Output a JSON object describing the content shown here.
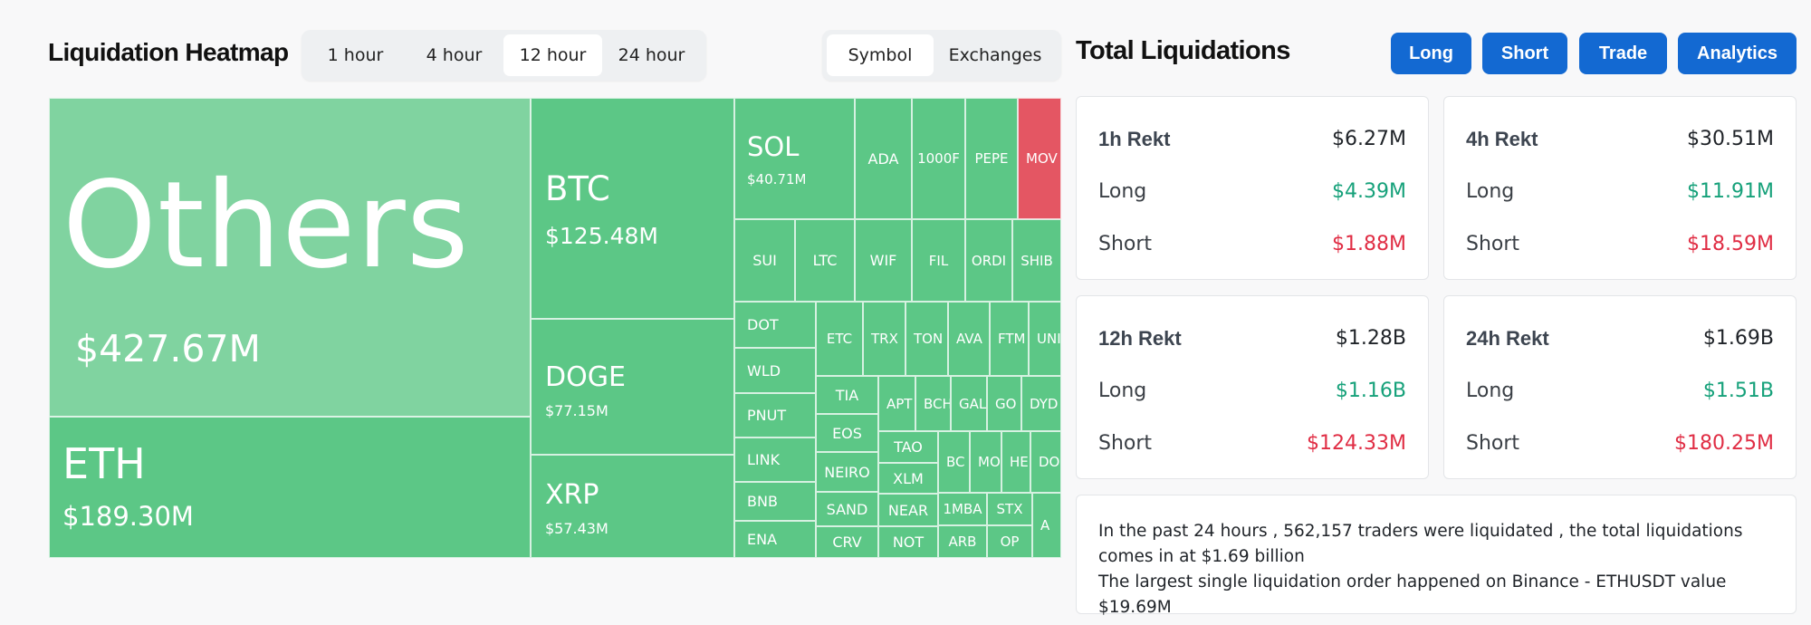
{
  "heatmap": {
    "title": "Liquidation Heatmap",
    "time_tabs": [
      "1 hour",
      "4 hour",
      "12 hour",
      "24 hour"
    ],
    "active_time_tab": "12 hour",
    "view_tabs": [
      "Symbol",
      "Exchanges"
    ],
    "active_view_tab": "Symbol",
    "colors": {
      "long_dominant": "#5cc786",
      "others": "#80d3a0",
      "short_dominant": "#e45663"
    },
    "tiles": [
      {
        "symbol": "Others",
        "value": "$427.67M"
      },
      {
        "symbol": "ETH",
        "value": "$189.30M"
      },
      {
        "symbol": "BTC",
        "value": "$125.48M"
      },
      {
        "symbol": "DOGE",
        "value": "$77.15M"
      },
      {
        "symbol": "XRP",
        "value": "$57.43M"
      },
      {
        "symbol": "SOL",
        "value": "$40.71M"
      },
      {
        "symbol": "ADA"
      },
      {
        "symbol": "1000F"
      },
      {
        "symbol": "PEPE"
      },
      {
        "symbol": "MOV"
      },
      {
        "symbol": "SUI"
      },
      {
        "symbol": "LTC"
      },
      {
        "symbol": "WIF"
      },
      {
        "symbol": "FIL"
      },
      {
        "symbol": "ORDI"
      },
      {
        "symbol": "SHIB"
      },
      {
        "symbol": "DOT"
      },
      {
        "symbol": "WLD"
      },
      {
        "symbol": "PNUT"
      },
      {
        "symbol": "LINK"
      },
      {
        "symbol": "BNB"
      },
      {
        "symbol": "ENA"
      },
      {
        "symbol": "ETC"
      },
      {
        "symbol": "TRX"
      },
      {
        "symbol": "TON"
      },
      {
        "symbol": "AVA"
      },
      {
        "symbol": "FTM"
      },
      {
        "symbol": "UNI"
      },
      {
        "symbol": "TIA"
      },
      {
        "symbol": "APT"
      },
      {
        "symbol": "BCH"
      },
      {
        "symbol": "GAL"
      },
      {
        "symbol": "GO"
      },
      {
        "symbol": "DYD"
      },
      {
        "symbol": "EOS"
      },
      {
        "symbol": "NEIRO"
      },
      {
        "symbol": "SAND"
      },
      {
        "symbol": "CRV"
      },
      {
        "symbol": "TAO"
      },
      {
        "symbol": "XLM"
      },
      {
        "symbol": "NEAR"
      },
      {
        "symbol": "NOT"
      },
      {
        "symbol": "BC"
      },
      {
        "symbol": "MO"
      },
      {
        "symbol": "HE"
      },
      {
        "symbol": "DO"
      },
      {
        "symbol": "1MBA"
      },
      {
        "symbol": "STX"
      },
      {
        "symbol": "ARB"
      },
      {
        "symbol": "OP"
      },
      {
        "symbol": "A"
      }
    ]
  },
  "total": {
    "title": "Total Liquidations",
    "buttons": [
      "Long",
      "Short",
      "Trade",
      "Analytics"
    ],
    "long_label": "Long",
    "short_label": "Short",
    "cards": [
      {
        "label": "1h Rekt",
        "total": "$6.27M",
        "long": "$4.39M",
        "short": "$1.88M"
      },
      {
        "label": "4h Rekt",
        "total": "$30.51M",
        "long": "$11.91M",
        "short": "$18.59M"
      },
      {
        "label": "12h Rekt",
        "total": "$1.28B",
        "long": "$1.16B",
        "short": "$124.33M"
      },
      {
        "label": "24h Rekt",
        "total": "$1.69B",
        "long": "$1.51B",
        "short": "$180.25M"
      }
    ],
    "summary_line1": "In the past 24 hours , 562,157 traders were liquidated , the total liquidations comes in at $1.69 billion",
    "summary_line2": "The largest single liquidation order happened on Binance - ETHUSDT value $19.69M"
  }
}
